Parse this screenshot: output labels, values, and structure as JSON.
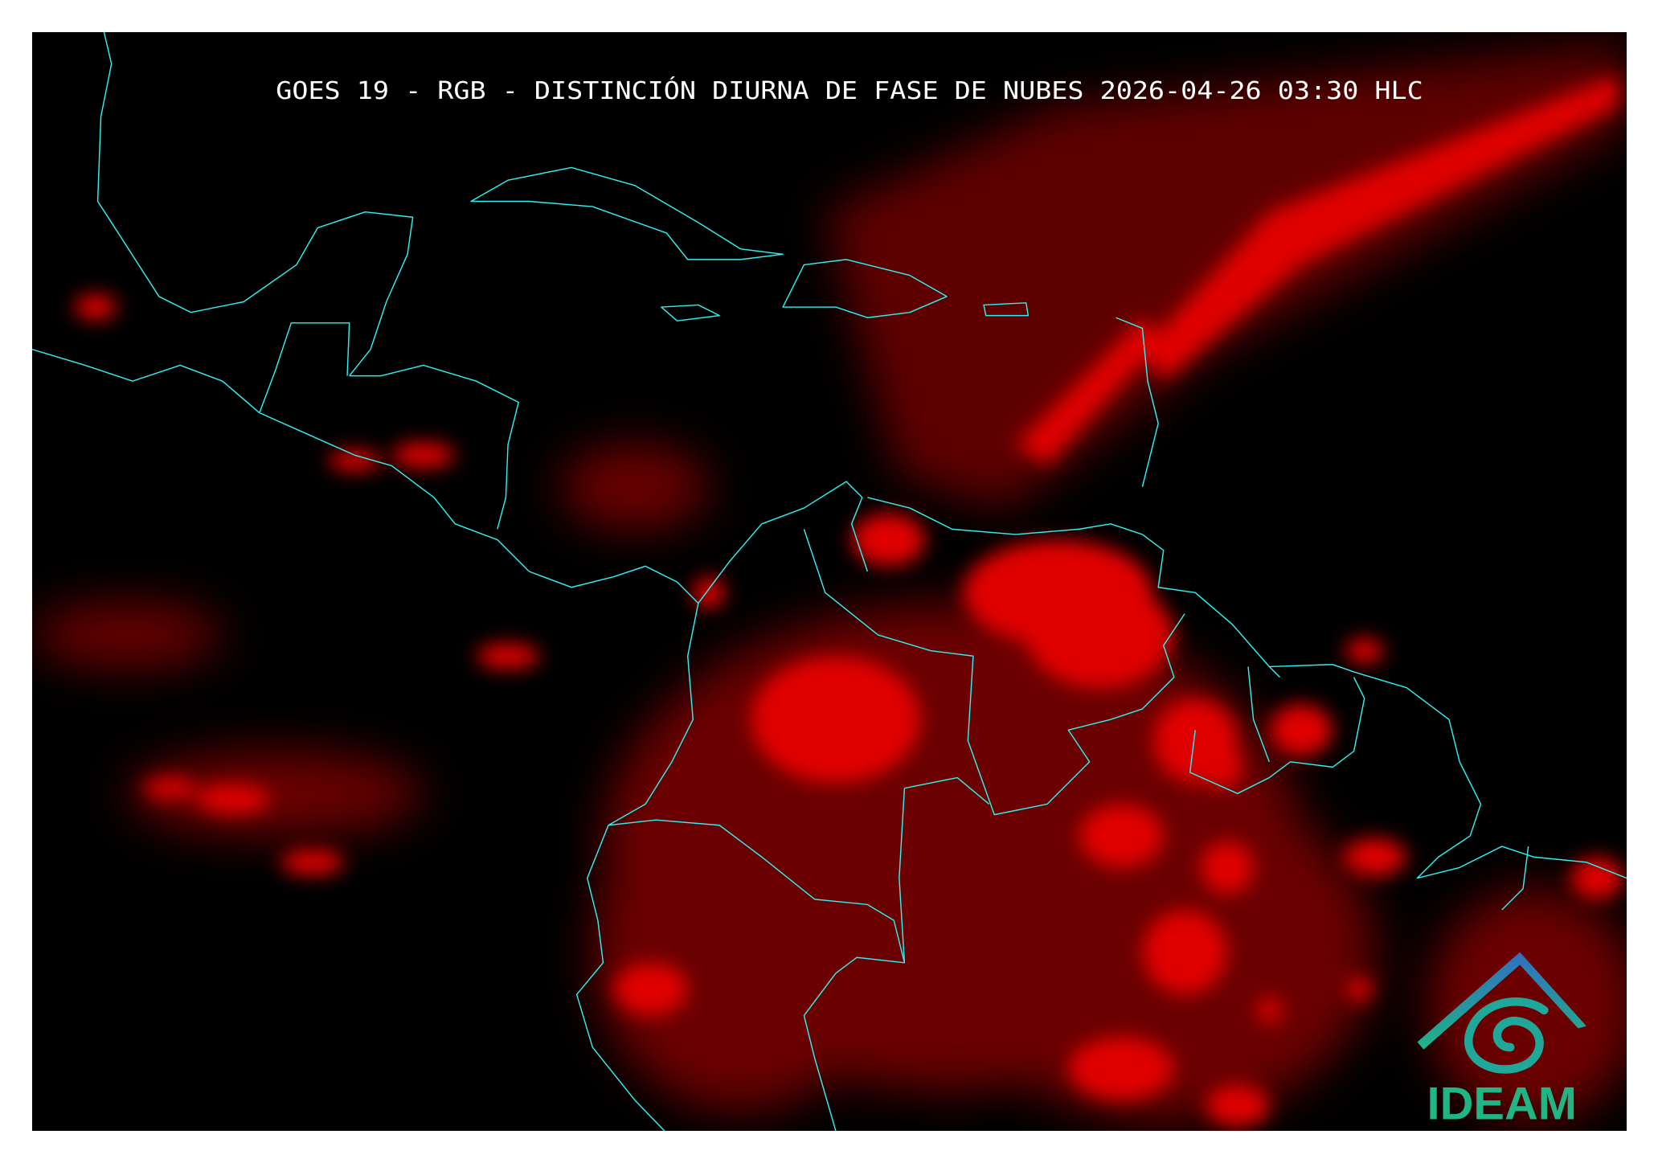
{
  "title": "GOES 19 - RGB - DISTINCIÓN DIURNA DE FASE DE NUBES 2026-04-26 03:30 HLC",
  "logo": {
    "text": "IDEAM",
    "colors": {
      "roof": "#2f6fc0",
      "spiral": "#1fa89a",
      "text": "#1fb585"
    }
  },
  "colors": {
    "background": "#000000",
    "clouds": "#ff0000",
    "coastlines": "#2ff0f0"
  }
}
